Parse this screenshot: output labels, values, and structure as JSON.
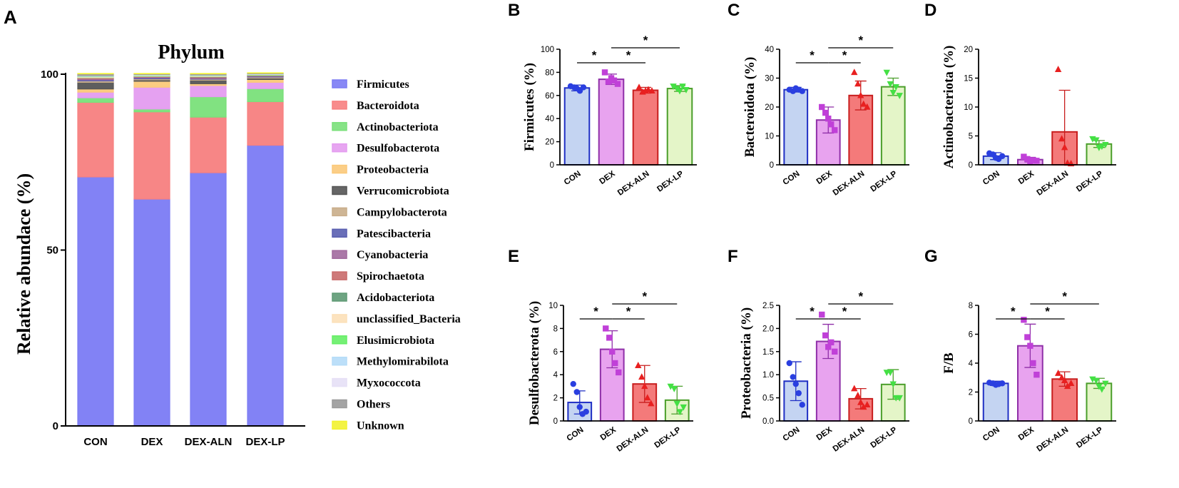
{
  "colors": {
    "CON": {
      "fill": "#c4d4f2",
      "stroke": "#1f2fc4",
      "pt": "#2a3fe0"
    },
    "DEX": {
      "fill": "#e8a3ef",
      "stroke": "#8f2fa8",
      "pt": "#c040d8"
    },
    "DEX-ALN": {
      "fill": "#f47a7a",
      "stroke": "#c81e1e",
      "pt": "#e82020"
    },
    "DEX-LP": {
      "fill": "#e4f5c8",
      "stroke": "#4a9e2a",
      "pt": "#44e044"
    }
  },
  "chart_data": [
    {
      "panel": "A",
      "type": "bar",
      "stacked": true,
      "title": "Phylum",
      "ylabel": "Relative abundace (%)",
      "xlabel": "",
      "ylim": [
        0,
        100
      ],
      "yticks": [
        "0",
        "50",
        "100"
      ],
      "categories": [
        "CON",
        "DEX",
        "DEX-ALN",
        "DEX-LP"
      ],
      "series": [
        {
          "name": "Firmicutes",
          "color": "#7b7bf4",
          "values": [
            70.8,
            64.5,
            72.0,
            79.8
          ]
        },
        {
          "name": "Bacteroidota",
          "color": "#f78080",
          "values": [
            21.2,
            24.8,
            15.8,
            12.4
          ]
        },
        {
          "name": "Actinobacteriota",
          "color": "#7ae07a",
          "values": [
            1.3,
            0.8,
            5.8,
            3.7
          ]
        },
        {
          "name": "Desulfobacterota",
          "color": "#e49cf0",
          "values": [
            1.6,
            6.2,
            3.2,
            1.8
          ]
        },
        {
          "name": "Proteobacteria",
          "color": "#fbc97a",
          "values": [
            0.9,
            1.7,
            0.5,
            0.8
          ]
        },
        {
          "name": "Verrucomicrobiota",
          "color": "#555555",
          "values": [
            1.9,
            0.4,
            1.0,
            0.4
          ]
        },
        {
          "name": "Campylobacterota",
          "color": "#c9ad8a",
          "values": [
            0.4,
            0.3,
            0.3,
            0.3
          ]
        },
        {
          "name": "Patescibacteria",
          "color": "#5a5fb0",
          "values": [
            0.3,
            0.3,
            0.2,
            0.2
          ]
        },
        {
          "name": "Cyanobacteria",
          "color": "#a26a9e",
          "values": [
            0.3,
            0.2,
            0.2,
            0.1
          ]
        },
        {
          "name": "Spirochaetota",
          "color": "#c96a6a",
          "values": [
            0.2,
            0.1,
            0.2,
            0.1
          ]
        },
        {
          "name": "Acidobacteriota",
          "color": "#5e9a74",
          "values": [
            0.1,
            0.1,
            0.1,
            0.1
          ]
        },
        {
          "name": "unclassified_Bacteria",
          "color": "#fce0b8",
          "values": [
            0.3,
            0.2,
            0.2,
            0.1
          ]
        },
        {
          "name": "Elusimicrobiota",
          "color": "#66ee66",
          "values": [
            0.1,
            0.1,
            0.1,
            0.1
          ]
        },
        {
          "name": "Methylomirabilota",
          "color": "#b5dcf8",
          "values": [
            0.1,
            0.1,
            0.1,
            0.1
          ]
        },
        {
          "name": "Myxococcota",
          "color": "#e6e0f6",
          "values": [
            0.1,
            0.1,
            0.1,
            0.1
          ]
        },
        {
          "name": "Others",
          "color": "#9a9a9a",
          "values": [
            0.5,
            0.2,
            0.3,
            0.2
          ]
        },
        {
          "name": "Unknown",
          "color": "#f2f230",
          "values": [
            0.1,
            0.1,
            0.1,
            0.1
          ]
        }
      ]
    },
    {
      "panel": "B",
      "type": "bar",
      "ylabel": "Firmicutes (%)",
      "xlabel": "",
      "ylim": [
        0,
        100
      ],
      "yticks": [
        "0",
        "20",
        "40",
        "60",
        "80",
        "100"
      ],
      "categories": [
        "CON",
        "DEX",
        "DEX-ALN",
        "DEX-LP"
      ],
      "values": [
        66.5,
        74.0,
        64.5,
        66.0
      ],
      "errors": [
        2.5,
        4.5,
        2.5,
        2.5
      ],
      "points": [
        [
          68,
          67,
          66,
          64,
          67
        ],
        [
          80,
          72,
          75,
          73,
          70
        ],
        [
          67,
          63,
          64,
          65,
          64
        ],
        [
          68,
          66,
          64,
          68,
          65
        ]
      ],
      "markers": [
        "circle",
        "square",
        "triangle-up",
        "triangle-down"
      ],
      "significance": [
        {
          "from": 0,
          "to": 1,
          "label": "*",
          "level": 0
        },
        {
          "from": 1,
          "to": 2,
          "label": "*",
          "level": 0
        },
        {
          "from": 1,
          "to": 3,
          "label": "*",
          "level": 1
        }
      ]
    },
    {
      "panel": "C",
      "type": "bar",
      "ylabel": "Bacteroidota (%)",
      "xlabel": "",
      "ylim": [
        0,
        40
      ],
      "yticks": [
        "0",
        "10",
        "20",
        "30",
        "40"
      ],
      "categories": [
        "CON",
        "DEX",
        "DEX-ALN",
        "DEX-LP"
      ],
      "values": [
        26.0,
        15.5,
        24.0,
        27.0
      ],
      "errors": [
        0.8,
        4.5,
        5.0,
        3.0
      ],
      "points": [
        [
          26,
          25.5,
          26.5,
          26,
          25.5
        ],
        [
          20,
          18,
          16,
          14,
          12
        ],
        [
          32,
          28,
          24,
          21,
          20
        ],
        [
          32,
          28,
          25,
          27,
          24
        ]
      ],
      "markers": [
        "circle",
        "square",
        "triangle-up",
        "triangle-down"
      ],
      "significance": [
        {
          "from": 0,
          "to": 1,
          "label": "*",
          "level": 0
        },
        {
          "from": 1,
          "to": 2,
          "label": "*",
          "level": 0
        },
        {
          "from": 1,
          "to": 3,
          "label": "*",
          "level": 1
        }
      ]
    },
    {
      "panel": "D",
      "type": "bar",
      "ylabel": "Actinobacteriota (%)",
      "xlabel": "",
      "ylim": [
        0,
        20
      ],
      "yticks": [
        "0",
        "5",
        "10",
        "15",
        "20"
      ],
      "categories": [
        "CON",
        "DEX",
        "DEX-ALN",
        "DEX-LP"
      ],
      "values": [
        1.5,
        0.9,
        5.7,
        3.6
      ],
      "errors": [
        0.6,
        0.4,
        7.2,
        0.6
      ],
      "points": [
        [
          2.0,
          1.8,
          1.2,
          1.0,
          1.5
        ],
        [
          1.4,
          1.0,
          0.6,
          0.8,
          0.7
        ],
        [
          16.5,
          4.5,
          3.0,
          0.3,
          0.2
        ],
        [
          4.5,
          4.3,
          3.0,
          3.2,
          3.5
        ]
      ],
      "markers": [
        "circle",
        "square",
        "triangle-up",
        "triangle-down"
      ],
      "significance": []
    },
    {
      "panel": "E",
      "type": "bar",
      "ylabel": "Desulfobacterota (%)",
      "xlabel": "",
      "ylim": [
        0,
        10
      ],
      "yticks": [
        "0",
        "2",
        "4",
        "6",
        "8",
        "10"
      ],
      "categories": [
        "CON",
        "DEX",
        "DEX-ALN",
        "DEX-LP"
      ],
      "values": [
        1.6,
        6.2,
        3.2,
        1.8
      ],
      "errors": [
        1.0,
        1.6,
        1.6,
        1.2
      ],
      "points": [
        [
          3.2,
          2.5,
          1.2,
          0.6,
          0.8
        ],
        [
          8.0,
          7.2,
          6.0,
          5.0,
          4.2
        ],
        [
          4.8,
          3.8,
          3.0,
          2.0,
          1.5
        ],
        [
          3.0,
          2.8,
          1.5,
          0.8,
          1.2
        ]
      ],
      "markers": [
        "circle",
        "square",
        "triangle-up",
        "triangle-down"
      ],
      "significance": [
        {
          "from": 0,
          "to": 1,
          "label": "*",
          "level": 0
        },
        {
          "from": 1,
          "to": 2,
          "label": "*",
          "level": 0
        },
        {
          "from": 1,
          "to": 3,
          "label": "*",
          "level": 1
        }
      ]
    },
    {
      "panel": "F",
      "type": "bar",
      "ylabel": "Proteobacteria (%)",
      "xlabel": "",
      "ylim": [
        0,
        2.5
      ],
      "yticks": [
        "0.0",
        "0.5",
        "1.0",
        "1.5",
        "2.0",
        "2.5"
      ],
      "categories": [
        "CON",
        "DEX",
        "DEX-ALN",
        "DEX-LP"
      ],
      "values": [
        0.86,
        1.72,
        0.48,
        0.79
      ],
      "errors": [
        0.42,
        0.37,
        0.22,
        0.32
      ],
      "points": [
        [
          1.25,
          0.95,
          0.8,
          0.6,
          0.35
        ],
        [
          2.3,
          1.85,
          1.6,
          1.7,
          1.5
        ],
        [
          0.7,
          0.55,
          0.4,
          0.3,
          0.35
        ],
        [
          1.05,
          1.05,
          0.8,
          0.5,
          0.5
        ]
      ],
      "markers": [
        "circle",
        "square",
        "triangle-up",
        "triangle-down"
      ],
      "significance": [
        {
          "from": 0,
          "to": 1,
          "label": "*",
          "level": 0
        },
        {
          "from": 1,
          "to": 2,
          "label": "*",
          "level": 0
        },
        {
          "from": 1,
          "to": 3,
          "label": "*",
          "level": 1
        }
      ]
    },
    {
      "panel": "G",
      "type": "bar",
      "ylabel": "F/B",
      "xlabel": "",
      "ylim": [
        0,
        8
      ],
      "yticks": [
        "0",
        "2",
        "4",
        "6",
        "8"
      ],
      "categories": [
        "CON",
        "DEX",
        "DEX-ALN",
        "DEX-LP"
      ],
      "values": [
        2.6,
        5.2,
        2.9,
        2.6
      ],
      "errors": [
        0.15,
        1.5,
        0.5,
        0.35
      ],
      "points": [
        [
          2.65,
          2.6,
          2.5,
          2.55,
          2.6
        ],
        [
          7.0,
          5.8,
          5.2,
          4.0,
          3.2
        ],
        [
          3.3,
          3.0,
          2.8,
          2.4,
          2.6
        ],
        [
          2.9,
          2.8,
          2.4,
          2.2,
          2.6
        ]
      ],
      "markers": [
        "circle",
        "square",
        "triangle-up",
        "triangle-down"
      ],
      "significance": [
        {
          "from": 0,
          "to": 1,
          "label": "*",
          "level": 0
        },
        {
          "from": 1,
          "to": 2,
          "label": "*",
          "level": 0
        },
        {
          "from": 1,
          "to": 3,
          "label": "*",
          "level": 1
        }
      ]
    }
  ]
}
